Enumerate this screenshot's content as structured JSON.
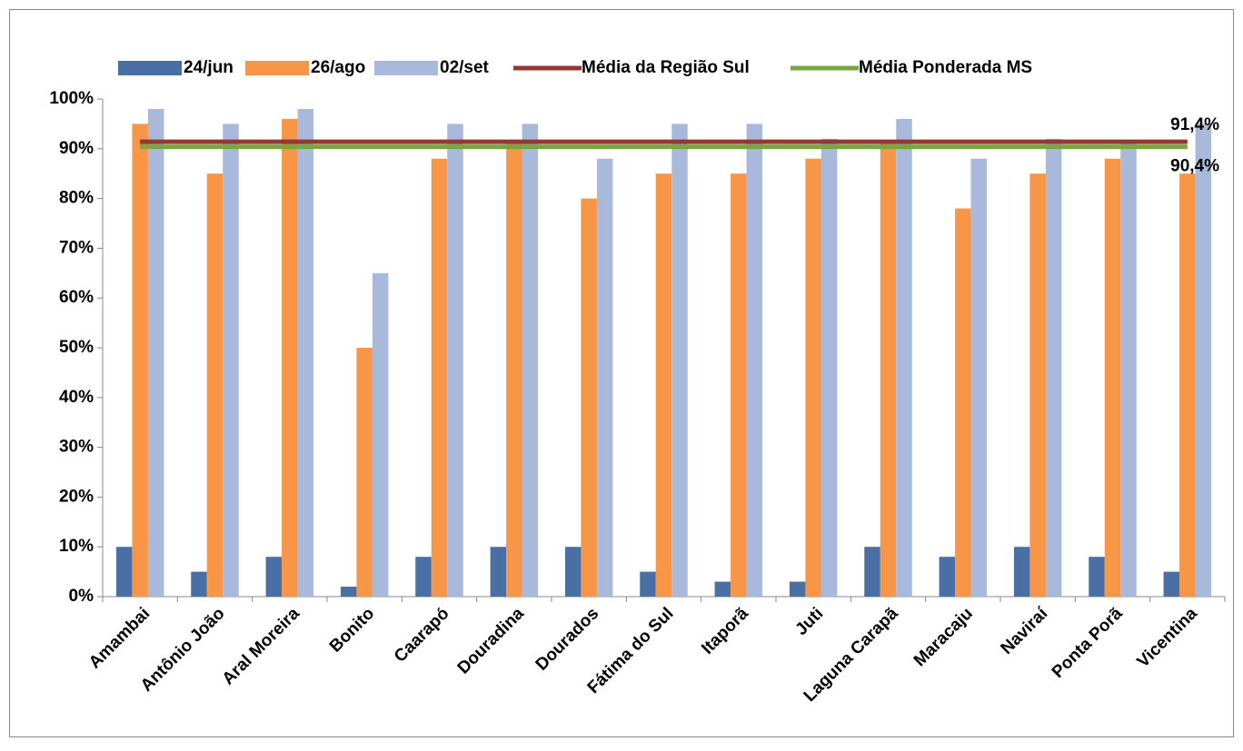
{
  "chart_data": {
    "type": "bar",
    "categories": [
      "Amambai",
      "Antônio João",
      "Aral Moreira",
      "Bonito",
      "Caarapó",
      "Douradina",
      "Dourados",
      "Fátima do Sul",
      "Itaporã",
      "Juti",
      "Laguna Carapã",
      "Maracaju",
      "Naviraí",
      "Ponta Porã",
      "Vicentina"
    ],
    "series": [
      {
        "name": "24/jun",
        "type": "bar",
        "color": "#4a6fa5",
        "values": [
          10,
          5,
          8,
          2,
          8,
          10,
          10,
          5,
          3,
          3,
          10,
          8,
          10,
          8,
          5
        ]
      },
      {
        "name": "26/ago",
        "type": "bar",
        "color": "#f79646",
        "values": [
          95,
          85,
          96,
          50,
          88,
          91,
          80,
          85,
          85,
          88,
          91,
          78,
          85,
          88,
          85
        ]
      },
      {
        "name": "02/set",
        "type": "bar",
        "color": "#a9b9dc",
        "values": [
          98,
          95,
          98,
          65,
          95,
          95,
          88,
          95,
          95,
          92,
          96,
          88,
          92,
          91,
          95
        ]
      },
      {
        "name": "Média da Região Sul",
        "type": "line",
        "color": "#953735",
        "values": [
          91.4,
          91.4,
          91.4,
          91.4,
          91.4,
          91.4,
          91.4,
          91.4,
          91.4,
          91.4,
          91.4,
          91.4,
          91.4,
          91.4,
          91.4
        ],
        "value_labels": [
          null,
          null,
          null,
          null,
          null,
          null,
          null,
          null,
          null,
          null,
          null,
          null,
          null,
          null,
          "91,4%"
        ]
      },
      {
        "name": "Média Ponderada MS",
        "type": "line",
        "color": "#77a83f",
        "values": [
          90.4,
          90.4,
          90.4,
          90.4,
          90.4,
          90.4,
          90.4,
          90.4,
          90.4,
          90.4,
          90.4,
          90.4,
          90.4,
          90.4,
          90.4
        ],
        "value_labels": [
          null,
          null,
          null,
          null,
          null,
          null,
          null,
          null,
          null,
          null,
          null,
          null,
          null,
          null,
          "90,4%"
        ]
      }
    ],
    "ylim": [
      0,
      100
    ],
    "yticks": [
      {
        "value": 0,
        "label": "0%"
      },
      {
        "value": 10,
        "label": "10%"
      },
      {
        "value": 20,
        "label": "20%"
      },
      {
        "value": 30,
        "label": "30%"
      },
      {
        "value": 40,
        "label": "40%"
      },
      {
        "value": 50,
        "label": "50%"
      },
      {
        "value": 60,
        "label": "60%"
      },
      {
        "value": 70,
        "label": "70%"
      },
      {
        "value": 80,
        "label": "80%"
      },
      {
        "value": 90,
        "label": "90%"
      },
      {
        "value": 100,
        "label": "100%"
      }
    ],
    "grid": false,
    "legend": "top"
  }
}
